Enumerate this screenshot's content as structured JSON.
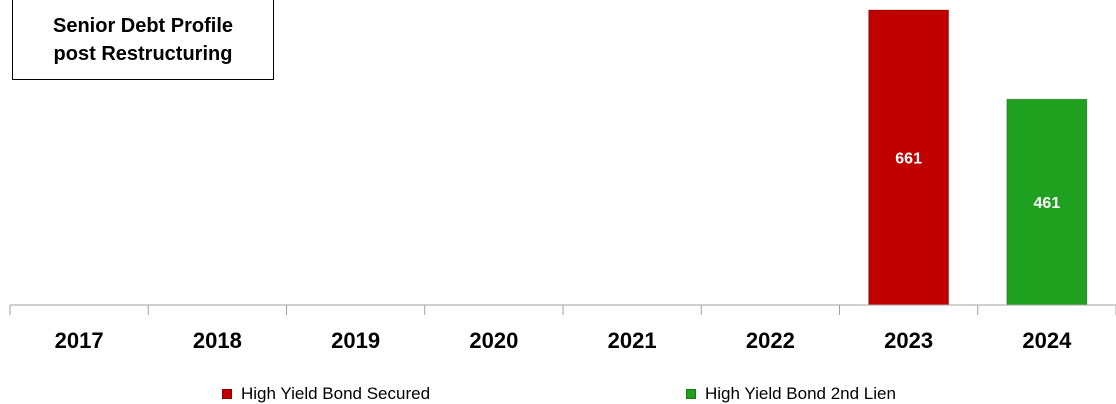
{
  "chart_data": {
    "type": "bar",
    "title_lines": [
      "Senior Debt Profile",
      "post Restructuring"
    ],
    "categories": [
      "2017",
      "2018",
      "2019",
      "2020",
      "2021",
      "2022",
      "2023",
      "2024"
    ],
    "series": [
      {
        "name": "High Yield Bond Secured",
        "color": "#c00000",
        "values": [
          0,
          0,
          0,
          0,
          0,
          0,
          661,
          0
        ]
      },
      {
        "name": "High Yield Bond 2nd Lien",
        "color": "#1fa01f",
        "values": [
          0,
          0,
          0,
          0,
          0,
          0,
          0,
          461
        ]
      }
    ],
    "ylim": [
      0,
      661
    ],
    "grid": false,
    "legend_position": "bottom"
  }
}
